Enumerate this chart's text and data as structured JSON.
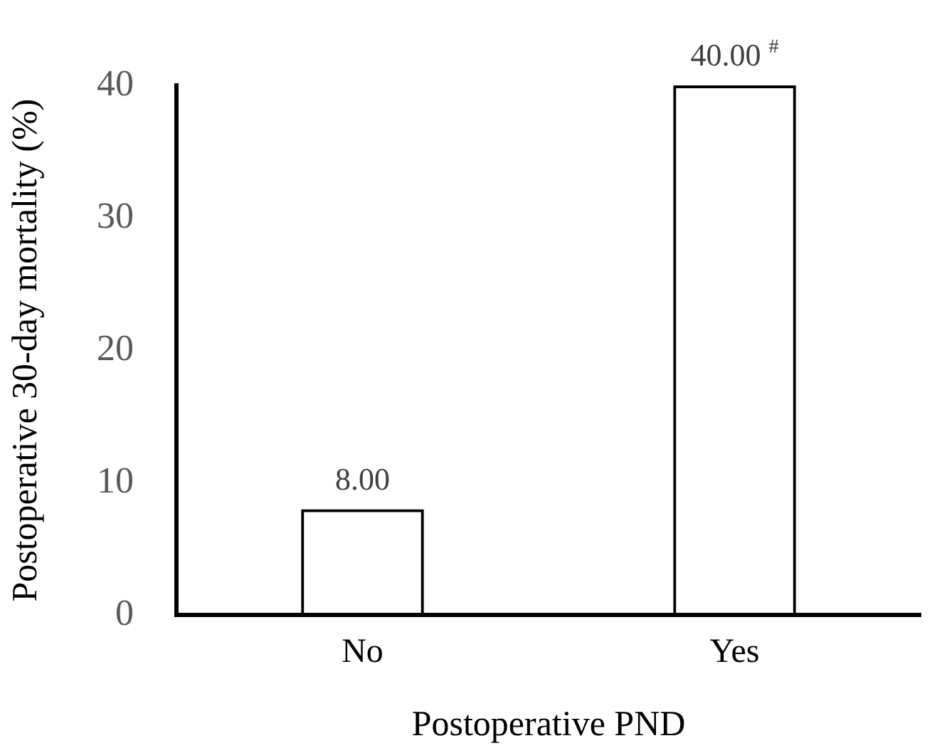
{
  "chart_data": {
    "type": "bar",
    "xlabel": "Postoperative PND",
    "ylabel": "Postoperative 30-day mortality (%)",
    "categories": [
      "No",
      "Yes"
    ],
    "values": [
      8,
      40
    ],
    "color": "#000000",
    "value_labels": [
      "8.00",
      "40.00 $^{#}$"
    ],
    "ylim": [
      0,
      40
    ],
    "yticks": [
      0,
      10,
      20,
      30,
      40
    ],
    "grid": false,
    "legend": false
  }
}
